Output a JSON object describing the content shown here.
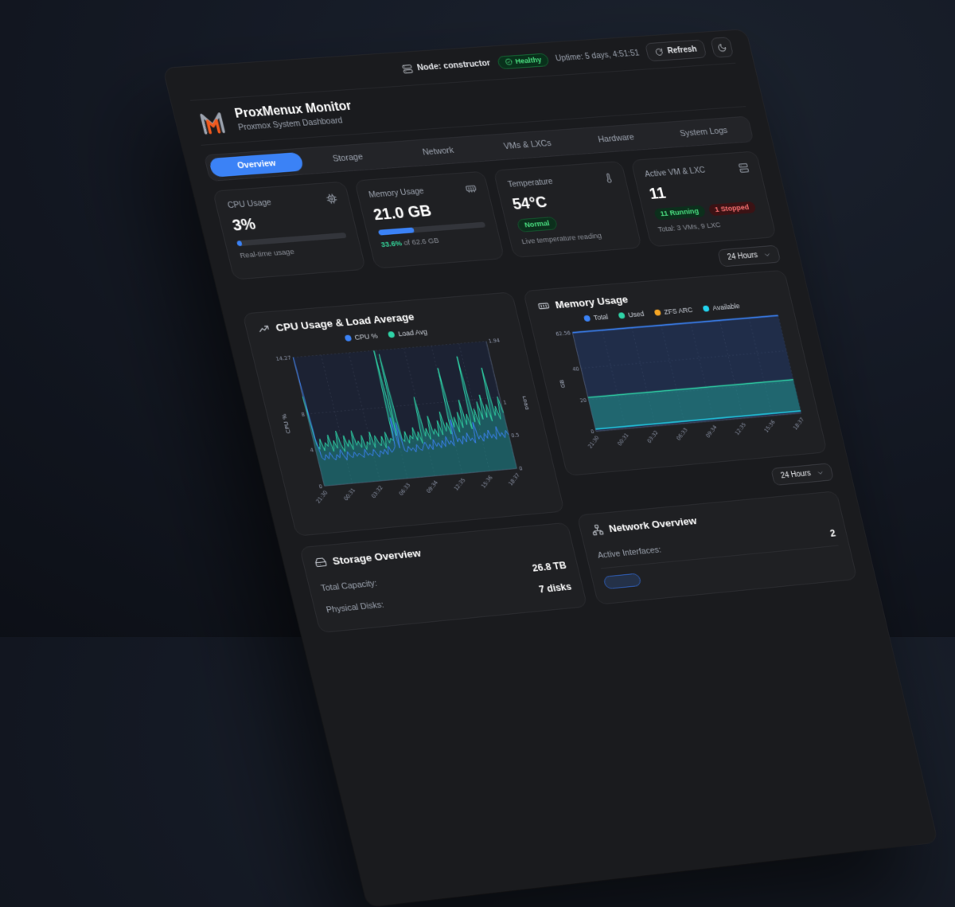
{
  "topbar": {
    "node_label": "Node: constructor",
    "health_badge": "Healthy",
    "uptime": "Uptime: 5 days, 4:51:51",
    "refresh_label": "Refresh"
  },
  "header": {
    "title": "ProxMenux Monitor",
    "subtitle": "Proxmox System Dashboard"
  },
  "tabs": [
    {
      "label": "Overview",
      "active": true
    },
    {
      "label": "Storage",
      "active": false
    },
    {
      "label": "Network",
      "active": false
    },
    {
      "label": "VMs & LXCs",
      "active": false
    },
    {
      "label": "Hardware",
      "active": false
    },
    {
      "label": "System Logs",
      "active": false
    }
  ],
  "stats": {
    "cpu": {
      "title": "CPU Usage",
      "value": "3%",
      "percent": 3,
      "subtitle": "Real-time usage"
    },
    "memory": {
      "title": "Memory Usage",
      "value": "21.0 GB",
      "percent": 33.6,
      "note_highlight": "33.6%",
      "note_rest": " of 62.6 GB"
    },
    "temperature": {
      "title": "Temperature",
      "value": "54°C",
      "badge": "Normal",
      "subtitle": "Live temperature reading"
    },
    "vm": {
      "title": "Active VM & LXC",
      "value": "11",
      "running_badge": "11 Running",
      "stopped_badge": "1 Stopped",
      "subtitle": "Total: 3 VMs, 9 LXC"
    }
  },
  "range_selector": {
    "value": "24 Hours"
  },
  "range_selector_2": {
    "value": "24 Hours"
  },
  "storage": {
    "title": "Storage Overview",
    "rows": [
      {
        "label": "Total Capacity:",
        "value": "26.8 TB"
      },
      {
        "label": "Physical Disks:",
        "value": "7 disks"
      }
    ]
  },
  "network": {
    "title": "Network Overview",
    "rows": [
      {
        "label": "Active Interfaces:",
        "value": "2"
      }
    ]
  },
  "colors": {
    "accent_blue": "#3b82f6",
    "green": "#2fd4a7",
    "success": "#4ade80",
    "orange": "#f5a524",
    "cyan": "#22d3ee",
    "red": "#f87171"
  },
  "chart_data": [
    {
      "type": "line",
      "title": "CPU Usage & Load Average",
      "legend": [
        {
          "name": "CPU %",
          "color": "#3b82f6"
        },
        {
          "name": "Load Avg",
          "color": "#2fd4a7"
        }
      ],
      "y_left_label": "CPU %",
      "y_right_label": "Load",
      "y_left_ticks": [
        0,
        4,
        8,
        14.27
      ],
      "y_right_ticks": [
        0,
        0.5,
        1,
        1.94
      ],
      "y_left_max": 14.27,
      "y_right_max": 1.94,
      "x_ticks": [
        "21:30",
        "00:31",
        "03:32",
        "06:33",
        "09:34",
        "12:35",
        "15:36",
        "18:37"
      ],
      "series": [
        {
          "name": "CPU %",
          "axis": "left",
          "color": "#3b82f6",
          "values": [
            14.27,
            5.2,
            3.1,
            2.8,
            3.4,
            2.9,
            3.6,
            3.0,
            2.7,
            3.3,
            2.9,
            3.8,
            3.1,
            2.6,
            3.5,
            3.0,
            2.8,
            3.4,
            2.9,
            3.2,
            3.0,
            2.7,
            3.6,
            2.9,
            3.1,
            2.8,
            3.5,
            3.0,
            2.6,
            3.3,
            2.9,
            3.4,
            2.8,
            3.7,
            3.0,
            3.2,
            3.6,
            6.8,
            3.4,
            6.2,
            3.1,
            2.9,
            3.5,
            3.0,
            3.3,
            2.8,
            3.6,
            3.1,
            2.9,
            3.4,
            3.8,
            3.0,
            3.5,
            2.9,
            4.0,
            3.2,
            3.6,
            3.0,
            3.8,
            3.1,
            4.2,
            3.3,
            3.7,
            3.1,
            6.0,
            3.5,
            3.9,
            3.2,
            4.1,
            3.4,
            4.4,
            3.5,
            3.8,
            3.2,
            5.5,
            3.6,
            4.0,
            3.3,
            4.2,
            3.6,
            4.5,
            3.6,
            4.0,
            3.4,
            4.8,
            3.7,
            4.1,
            3.5,
            4.3,
            3.8
          ]
        },
        {
          "name": "Load Avg",
          "axis": "right",
          "color": "#2fd4a7",
          "fill": "rgba(32,160,150,0.45)",
          "values": [
            1.35,
            0.62,
            0.55,
            0.7,
            0.52,
            0.64,
            0.58,
            0.75,
            0.5,
            0.66,
            0.54,
            0.8,
            0.58,
            0.48,
            0.72,
            0.55,
            0.65,
            0.5,
            0.78,
            0.56,
            0.62,
            0.52,
            0.7,
            0.48,
            0.6,
            0.55,
            0.74,
            0.5,
            0.68,
            0.58,
            0.52,
            0.66,
            0.48,
            0.72,
            0.55,
            0.62,
            0.58,
            1.94,
            0.65,
            1.88,
            0.6,
            0.55,
            0.7,
            0.52,
            0.64,
            0.58,
            0.75,
            0.55,
            0.68,
            0.5,
            1.2,
            0.6,
            0.72,
            0.55,
            0.9,
            0.62,
            0.7,
            0.58,
            0.82,
            0.6,
            0.95,
            0.65,
            0.78,
            0.6,
            1.6,
            0.7,
            0.85,
            0.62,
            0.92,
            0.68,
            1.1,
            0.72,
            0.88,
            0.65,
            1.75,
            0.75,
            0.95,
            0.7,
            1.05,
            0.78,
            1.15,
            0.8,
            1.0,
            0.74,
            1.55,
            0.82,
            0.96,
            0.76,
            1.1,
            0.85
          ]
        }
      ]
    },
    {
      "type": "area",
      "title": "Memory Usage",
      "legend": [
        {
          "name": "Total",
          "color": "#3b82f6"
        },
        {
          "name": "Used",
          "color": "#2fd4a7"
        },
        {
          "name": "ZFS ARC",
          "color": "#f5a524"
        },
        {
          "name": "Available",
          "color": "#22d3ee"
        }
      ],
      "ylabel": "GB",
      "y_ticks": [
        0,
        20,
        40,
        62.56
      ],
      "y_max": 62.56,
      "x_ticks": [
        "21:30",
        "00:31",
        "03:32",
        "06:33",
        "09:34",
        "12:35",
        "15:36",
        "18:37"
      ],
      "series": [
        {
          "name": "Total",
          "color": "#3b82f6",
          "value": 62.56
        },
        {
          "name": "Used",
          "color": "#2fd4a7",
          "value": 21.5
        },
        {
          "name": "ZFS ARC",
          "color": "#f5a524",
          "value": 1.3
        },
        {
          "name": "Available",
          "color": "#22d3ee",
          "value": 41.1
        }
      ],
      "render": {
        "total": 62.56,
        "band_top": 21.5,
        "band_bottom": 1.3
      }
    }
  ]
}
